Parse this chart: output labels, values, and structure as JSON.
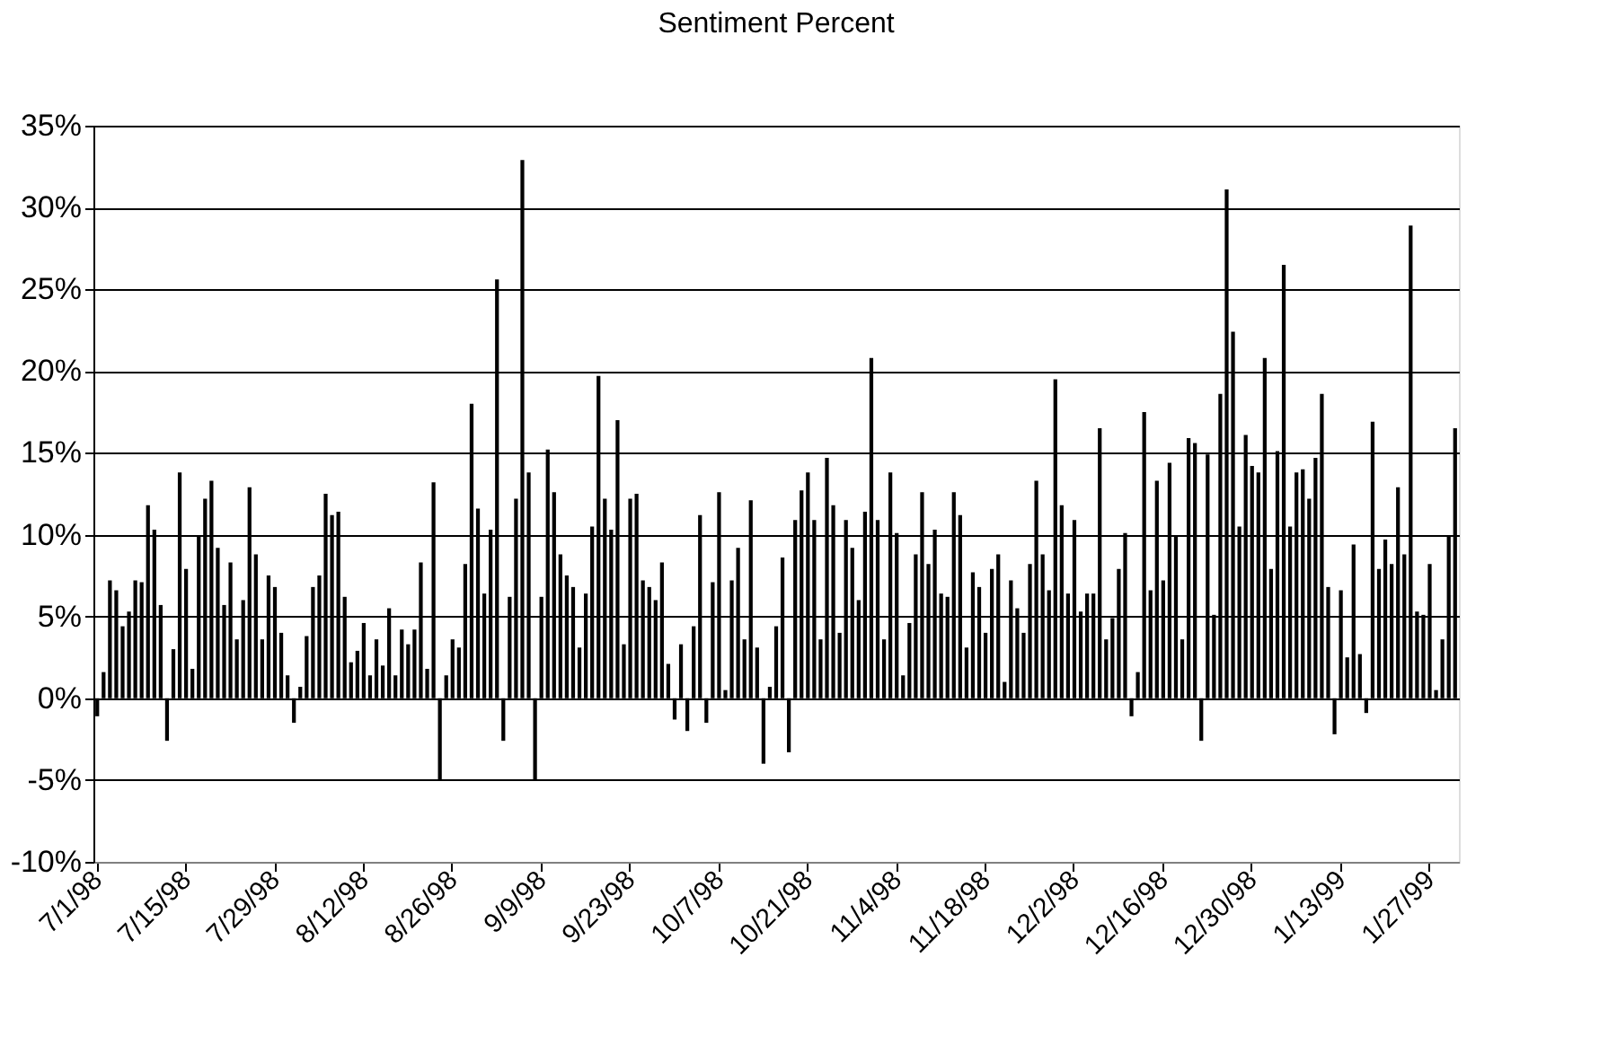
{
  "chart_data": {
    "type": "bar",
    "title": "Sentiment Percent",
    "color": "#000000",
    "grid": "y",
    "ylim": [
      -10,
      35
    ],
    "yticks": [
      {
        "value": -10,
        "label": "-10%"
      },
      {
        "value": -5,
        "label": "-5%"
      },
      {
        "value": 0,
        "label": "0%"
      },
      {
        "value": 5,
        "label": "5%"
      },
      {
        "value": 10,
        "label": "10%"
      },
      {
        "value": 15,
        "label": "15%"
      },
      {
        "value": 20,
        "label": "20%"
      },
      {
        "value": 25,
        "label": "25%"
      },
      {
        "value": 30,
        "label": "30%"
      },
      {
        "value": 35,
        "label": "35%"
      }
    ],
    "categories": [
      "7/1/98",
      null,
      null,
      null,
      null,
      null,
      null,
      null,
      null,
      null,
      null,
      null,
      null,
      null,
      "7/15/98",
      null,
      null,
      null,
      null,
      null,
      null,
      null,
      null,
      null,
      null,
      null,
      null,
      null,
      "7/29/98",
      null,
      null,
      null,
      null,
      null,
      null,
      null,
      null,
      null,
      null,
      null,
      null,
      null,
      "8/12/98",
      null,
      null,
      null,
      null,
      null,
      null,
      null,
      null,
      null,
      null,
      null,
      null,
      null,
      "8/26/98",
      null,
      null,
      null,
      null,
      null,
      null,
      null,
      null,
      null,
      null,
      null,
      null,
      null,
      "9/9/98",
      null,
      null,
      null,
      null,
      null,
      null,
      null,
      null,
      null,
      null,
      null,
      null,
      null,
      "9/23/98",
      null,
      null,
      null,
      null,
      null,
      null,
      null,
      null,
      null,
      null,
      null,
      null,
      null,
      "10/7/98",
      null,
      null,
      null,
      null,
      null,
      null,
      null,
      null,
      null,
      null,
      null,
      null,
      null,
      "10/21/98",
      null,
      null,
      null,
      null,
      null,
      null,
      null,
      null,
      null,
      null,
      null,
      null,
      null,
      "11/4/98",
      null,
      null,
      null,
      null,
      null,
      null,
      null,
      null,
      null,
      null,
      null,
      null,
      null,
      "11/18/98",
      null,
      null,
      null,
      null,
      null,
      null,
      null,
      null,
      null,
      null,
      null,
      null,
      null,
      "12/2/98",
      null,
      null,
      null,
      null,
      null,
      null,
      null,
      null,
      null,
      null,
      null,
      null,
      null,
      "12/16/98",
      null,
      null,
      null,
      null,
      null,
      null,
      null,
      null,
      null,
      null,
      null,
      null,
      null,
      "12/30/98",
      null,
      null,
      null,
      null,
      null,
      null,
      null,
      null,
      null,
      null,
      null,
      null,
      null,
      "1/13/99",
      null,
      null,
      null,
      null,
      null,
      null,
      null,
      null,
      null,
      null,
      null,
      null,
      null,
      "1/27/99",
      null,
      null,
      null,
      null
    ],
    "values": [
      -1.1,
      1.6,
      7.2,
      6.6,
      4.4,
      5.3,
      7.2,
      7.1,
      11.8,
      10.3,
      5.7,
      -2.6,
      3.0,
      13.8,
      7.9,
      1.8,
      9.9,
      12.2,
      13.3,
      9.2,
      5.7,
      8.3,
      3.6,
      6.0,
      12.9,
      8.8,
      3.6,
      7.5,
      6.8,
      4.0,
      1.4,
      -1.5,
      0.7,
      3.8,
      6.8,
      7.5,
      12.5,
      11.2,
      11.4,
      6.2,
      2.2,
      2.9,
      4.6,
      1.4,
      3.6,
      2.0,
      5.5,
      1.4,
      4.2,
      3.3,
      4.2,
      8.3,
      1.8,
      13.2,
      -5.0,
      1.4,
      3.6,
      3.1,
      8.2,
      18.0,
      11.6,
      6.4,
      10.3,
      25.6,
      -2.6,
      6.2,
      12.2,
      32.9,
      13.8,
      -5.0,
      6.2,
      15.2,
      12.6,
      8.8,
      7.5,
      6.8,
      3.1,
      6.4,
      10.5,
      19.7,
      12.2,
      10.3,
      17.0,
      3.3,
      12.2,
      12.5,
      7.2,
      6.8,
      6.0,
      8.3,
      2.1,
      -1.3,
      3.3,
      -2.0,
      4.4,
      11.2,
      -1.5,
      7.1,
      12.6,
      0.5,
      7.2,
      9.2,
      3.6,
      12.1,
      3.1,
      -4.0,
      0.7,
      4.4,
      8.6,
      -3.3,
      10.9,
      12.7,
      13.8,
      10.9,
      3.6,
      14.7,
      11.8,
      4.0,
      10.9,
      9.2,
      6.0,
      11.4,
      20.8,
      10.9,
      3.6,
      13.8,
      10.1,
      1.4,
      4.6,
      8.8,
      12.6,
      8.2,
      10.3,
      6.4,
      6.2,
      12.6,
      11.2,
      3.1,
      7.7,
      6.8,
      4.0,
      7.9,
      8.8,
      1.0,
      7.2,
      5.5,
      4.0,
      8.2,
      13.3,
      8.8,
      6.6,
      19.5,
      11.8,
      6.4,
      10.9,
      5.3,
      6.4,
      6.4,
      16.5,
      3.6,
      4.9,
      7.9,
      10.1,
      -1.1,
      1.6,
      17.5,
      6.6,
      13.3,
      7.2,
      14.4,
      9.9,
      3.6,
      15.9,
      15.6,
      -2.6,
      14.9,
      5.1,
      18.6,
      31.1,
      22.4,
      10.5,
      16.1,
      14.2,
      13.8,
      20.8,
      7.9,
      15.1,
      26.5,
      10.5,
      13.8,
      14.0,
      12.2,
      14.7,
      18.6,
      6.8,
      -2.2,
      6.6,
      2.5,
      9.4,
      2.7,
      -0.9,
      16.9,
      7.9,
      9.7,
      8.2,
      12.9,
      8.8,
      28.9,
      5.3,
      5.1,
      8.2,
      0.5,
      3.6,
      9.9,
      16.5
    ]
  }
}
